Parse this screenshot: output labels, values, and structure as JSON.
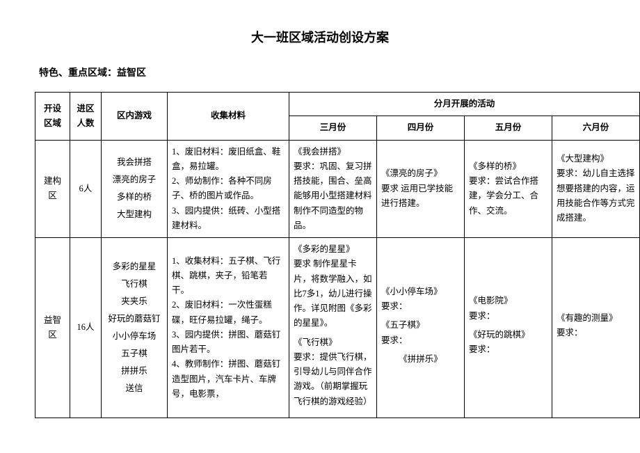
{
  "title": "大一班区域活动创设方案",
  "subtitle": "特色、重点区域：益智区",
  "headers": {
    "area": "开设\n区域",
    "people": "进区\n人数",
    "games": "区内游戏",
    "materials": "收集材料",
    "monthly_group": "分月开展的活动",
    "months": [
      "三月份",
      "四月份",
      "五月份",
      "六月份"
    ]
  },
  "rows": [
    {
      "area": "建构区",
      "people": "6人",
      "games": "我会拼搭\n漂亮的房子\n多样的桥\n大型建构",
      "materials": "1、废旧材料：废旧纸盒、鞋盒，易拉罐。\n2、师幼制作：各种不同房子、桥的图片或作品。\n3、园内提供：纸砖、小型搭建材料。",
      "march": "《我会拼搭》\n要求：巩固、复习拼搭技能，围合、垒高能够用小型搭建材料制作不同造型的物品。",
      "april": "《漂亮的房子》\n要求 运用已学技能进行搭建。",
      "may": "《多样的桥》\n要求：尝试合作搭建，学会分工、合作、交流。",
      "june": "《大型建构》\n要求：幼儿自主选择想要搭建的内容，运用技能合作等方式完成搭建。"
    },
    {
      "area": "益智区",
      "people": "16人",
      "games": "多彩的星星\n飞行棋\n夹夹乐\n好玩的蘑菇钉\n小小停车场\n五子棋\n拼拼乐\n送信",
      "materials": "1、收集材料：五子棋、飞行棋、跳棋，夹子，铅笔若干。\n2、废旧材料：一次性蛋糕碟，旺仔易拉罐，绳子。\n3、园内提供：拼图、蘑菇钉图片若干。\n4、教师制作：拼图、蘑菇钉造型图片，汽车卡片、车牌号，电影票，",
      "march_a": "《多彩的星星》\n要求  制作星星卡片，将数学融入，如比7多1，幼儿进行操作。详见附图《多彩的星星》。",
      "march_b": "《飞行棋》\n要求：提供飞行棋，引导幼儿与同伴合作游戏。（前期掌握玩飞行棋的游戏经验）",
      "april_a": "《小小停车场》\n要求：",
      "april_b": "《五子棋》\n要求：",
      "april_c": "《拼拼乐》",
      "may_a": "《电影院》\n要求：",
      "may_b": "《好玩的跳棋》\n要求：",
      "june_a": "《有趣的测量》\n要求："
    }
  ]
}
